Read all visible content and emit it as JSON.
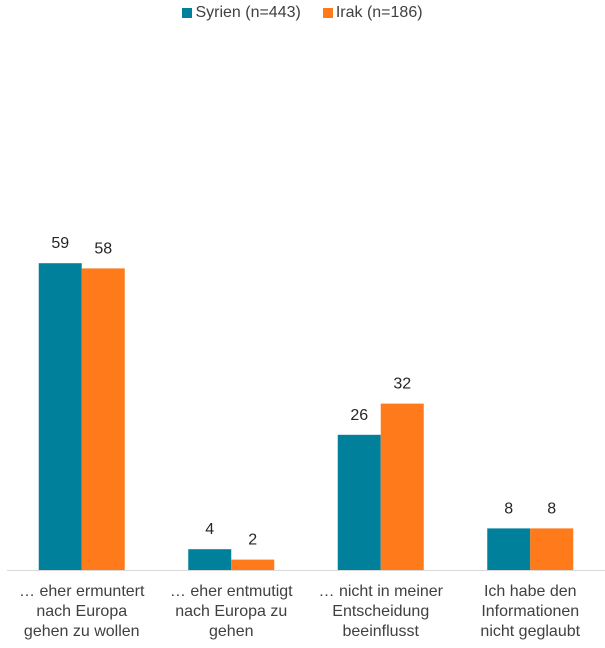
{
  "chart_data": {
    "type": "bar",
    "categories": [
      "… eher ermuntert nach Europa gehen zu wollen",
      "… eher entmutigt nach Europa zu gehen",
      "… nicht in meiner Entscheidung beeinflusst",
      "Ich habe den Informationen nicht geglaubt"
    ],
    "category_lines": [
      [
        "… eher ermuntert",
        "nach Europa",
        "gehen zu wollen"
      ],
      [
        "… eher entmutigt",
        "nach Europa zu",
        "gehen"
      ],
      [
        "… nicht in meiner",
        "Entscheidung",
        "beeinflusst"
      ],
      [
        "Ich habe den",
        "Informationen",
        "nicht geglaubt"
      ]
    ],
    "series": [
      {
        "name": "Syrien (n=443)",
        "color": "#00809b",
        "values": [
          59,
          4,
          26,
          8
        ]
      },
      {
        "name": "Irak (n=186)",
        "color": "#ff7a1a",
        "values": [
          58,
          2,
          32,
          8
        ]
      }
    ],
    "ylim": [
      0,
      100
    ],
    "legend_position": "top-center",
    "grid": false
  }
}
